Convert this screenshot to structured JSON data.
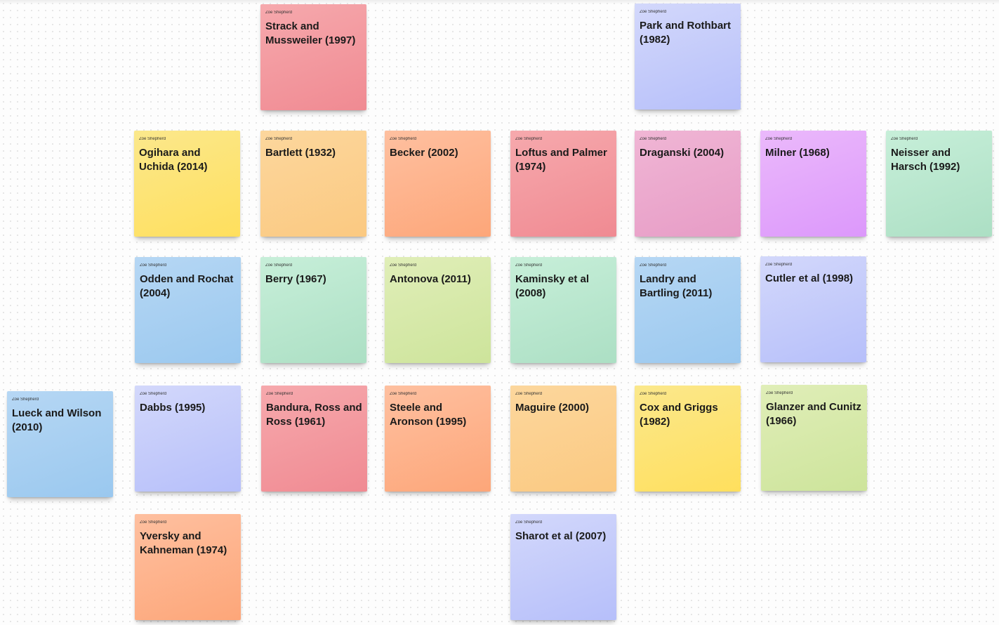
{
  "board": {
    "notes": [
      {
        "author": "Zoe Shepherd",
        "title": "Strack and Mussweiler (1997)",
        "color": "#f3a0a7"
      },
      {
        "author": "Zoe Shepherd",
        "title": "Park and Rothbart (1982)",
        "color": "#c8cdfb"
      },
      {
        "author": "Zoe Shepherd",
        "title": "Ogihara and Uchida (2014)",
        "color": "#fde47a"
      },
      {
        "author": "Zoe Shepherd",
        "title": "Bartlett (1932)",
        "color": "#fcd08f"
      },
      {
        "author": "Zoe Shepherd",
        "title": "Becker (2002)",
        "color": "#fdb48b"
      },
      {
        "author": "Zoe Shepherd",
        "title": "Loftus and Palmer (1974)",
        "color": "#f3a0a7"
      },
      {
        "author": "Zoe Shepherd",
        "title": "Draganski (2004)",
        "color": "#ecaad0"
      },
      {
        "author": "Zoe Shepherd",
        "title": "Milner (1968)",
        "color": "#e4a9fb"
      },
      {
        "author": "Zoe Shepherd",
        "title": "Neisser and Harsch (1992)",
        "color": "#bde8d0"
      },
      {
        "author": "Zoe Shepherd",
        "title": "Odden and Rochat (2004)",
        "color": "#a9d0f2"
      },
      {
        "author": "Zoe Shepherd",
        "title": "Berry (1967)",
        "color": "#bde8d0"
      },
      {
        "author": "Zoe Shepherd",
        "title": "Antonova (2011)",
        "color": "#d8eaaa"
      },
      {
        "author": "Zoe Shepherd",
        "title": "Kaminsky et al (2008)",
        "color": "#bde8d0"
      },
      {
        "author": "Zoe Shepherd",
        "title": "Landry and Bartling (2011)",
        "color": "#a9d0f2"
      },
      {
        "author": "Zoe Shepherd",
        "title": "Cutler et al (1998)",
        "color": "#c8cdfb"
      },
      {
        "author": "Zoe Shepherd",
        "title": "Lueck and Wilson (2010)",
        "color": "#a9d0f2"
      },
      {
        "author": "Zoe Shepherd",
        "title": "Dabbs (1995)",
        "color": "#c8cdfb"
      },
      {
        "author": "Zoe Shepherd",
        "title": "Bandura, Ross and Ross (1961)",
        "color": "#f3a0a7"
      },
      {
        "author": "Zoe Shepherd",
        "title": "Steele and Aronson (1995)",
        "color": "#fdb48b"
      },
      {
        "author": "Zoe Shepherd",
        "title": "Maguire (2000)",
        "color": "#fcd08f"
      },
      {
        "author": "Zoe Shepherd",
        "title": "Cox and Griggs (1982)",
        "color": "#fde47a"
      },
      {
        "author": "Zoe Shepherd",
        "title": "Glanzer and Cunitz (1966)",
        "color": "#d8eaaa"
      },
      {
        "author": "Zoe Shepherd",
        "title": "Yversky and Kahneman (1974)",
        "color": "#fdb48b"
      },
      {
        "author": "Zoe Shepherd",
        "title": "Sharot et al (2007)",
        "color": "#c8cdfb"
      }
    ]
  }
}
